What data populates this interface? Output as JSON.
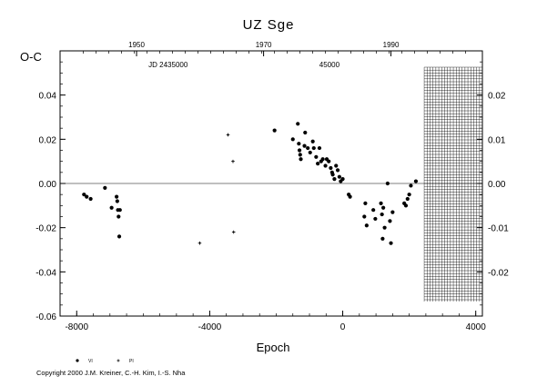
{
  "chart_data": {
    "type": "scatter",
    "title": "UZ Sge",
    "xlabel": "Epoch",
    "ylabel": "O-C",
    "xlim": [
      -8500,
      4200
    ],
    "ylim": [
      -0.06,
      0.06
    ],
    "right_ylim": [
      -0.03,
      0.03
    ],
    "x_ticks": [
      -8000,
      -4000,
      0,
      4000
    ],
    "x_tick_labels": [
      "-8000",
      "-4000",
      "0",
      "4000"
    ],
    "y_ticks": [
      -0.06,
      -0.04,
      -0.02,
      0.0,
      0.02,
      0.04
    ],
    "y_tick_labels": [
      "-0.06",
      "-0.04",
      "-0.02",
      "0.00",
      "0.02",
      "0.04"
    ],
    "right_ticks": [
      -0.02,
      -0.01,
      0.0,
      0.01,
      0.02
    ],
    "right_tick_labels": [
      "-0.02",
      "-0.01",
      "0.00",
      "0.01",
      "0.02"
    ],
    "top_year_ticks": [
      {
        "epoch": -6200,
        "label": "1950"
      },
      {
        "epoch": -2380,
        "label": "1970"
      },
      {
        "epoch": 1450,
        "label": "1990"
      }
    ],
    "jd_labels": [
      {
        "epoch": -5250,
        "label": "JD 2435000"
      },
      {
        "epoch": -400,
        "label": "45000"
      }
    ],
    "zero_line": true,
    "grid_region": {
      "epoch_start": 2450,
      "epoch_end": 4200
    },
    "legend": {
      "placement": "bottom-left",
      "entries": [
        "VI",
        "PI"
      ]
    },
    "series": [
      {
        "name": "VI",
        "marker": "dot",
        "points": [
          [
            -7780,
            -0.005
          ],
          [
            -7700,
            -0.006
          ],
          [
            -7580,
            -0.007
          ],
          [
            -7150,
            -0.002
          ],
          [
            -6950,
            -0.011
          ],
          [
            -6800,
            -0.006
          ],
          [
            -6780,
            -0.008
          ],
          [
            -6760,
            -0.012
          ],
          [
            -6740,
            -0.015
          ],
          [
            -6720,
            -0.024
          ],
          [
            -6700,
            -0.012
          ],
          [
            -2050,
            0.024
          ],
          [
            -1500,
            0.02
          ],
          [
            -1350,
            0.027
          ],
          [
            -1320,
            0.018
          ],
          [
            -1300,
            0.015
          ],
          [
            -1280,
            0.013
          ],
          [
            -1260,
            0.011
          ],
          [
            -1150,
            0.017
          ],
          [
            -1130,
            0.023
          ],
          [
            -1050,
            0.016
          ],
          [
            -980,
            0.014
          ],
          [
            -900,
            0.019
          ],
          [
            -870,
            0.016
          ],
          [
            -800,
            0.012
          ],
          [
            -750,
            0.009
          ],
          [
            -700,
            0.016
          ],
          [
            -650,
            0.01
          ],
          [
            -600,
            0.011
          ],
          [
            -520,
            0.008
          ],
          [
            -480,
            0.011
          ],
          [
            -420,
            0.01
          ],
          [
            -360,
            0.007
          ],
          [
            -320,
            0.005
          ],
          [
            -300,
            0.004
          ],
          [
            -250,
            0.002
          ],
          [
            -200,
            0.008
          ],
          [
            -150,
            0.006
          ],
          [
            -100,
            0.003
          ],
          [
            -60,
            0.001
          ],
          [
            0,
            0.002
          ],
          [
            180,
            -0.005
          ],
          [
            220,
            -0.006
          ],
          [
            650,
            -0.015
          ],
          [
            680,
            -0.009
          ],
          [
            720,
            -0.019
          ],
          [
            920,
            -0.012
          ],
          [
            980,
            -0.016
          ],
          [
            1150,
            -0.009
          ],
          [
            1180,
            -0.014
          ],
          [
            1200,
            -0.025
          ],
          [
            1220,
            -0.011
          ],
          [
            1260,
            -0.02
          ],
          [
            1350,
            0.0
          ],
          [
            1420,
            -0.017
          ],
          [
            1450,
            -0.027
          ],
          [
            1500,
            -0.013
          ],
          [
            1850,
            -0.009
          ],
          [
            1900,
            -0.01
          ],
          [
            1950,
            -0.007
          ],
          [
            2000,
            -0.005
          ],
          [
            2050,
            -0.001
          ],
          [
            2200,
            0.001
          ]
        ]
      },
      {
        "name": "PI",
        "marker": "plus",
        "points": [
          [
            -4300,
            -0.027
          ],
          [
            -3450,
            0.022
          ],
          [
            -3300,
            0.01
          ],
          [
            -3280,
            -0.022
          ]
        ]
      }
    ]
  },
  "copyright": "Copyright 2000 J.M. Kreiner, C.-H. Kim, I.-S. Nha"
}
